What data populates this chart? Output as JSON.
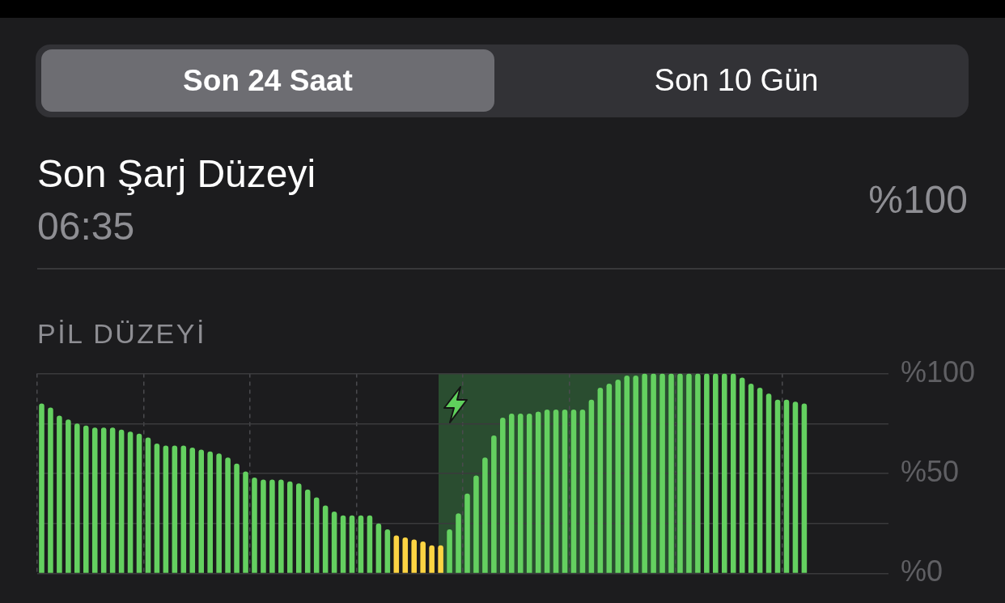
{
  "chart_data": {
    "type": "bar",
    "title": "PİL DÜZEYİ",
    "annotations": [
      "Son 24 Saat",
      "Son 10 Gün",
      "Son Şarj Düzeyi",
      "06:35",
      "%100"
    ],
    "categories": [
      null,
      null,
      null,
      null,
      null,
      null,
      null,
      null,
      null,
      null,
      null,
      null,
      null,
      null,
      null,
      null,
      null,
      null,
      null,
      null,
      null,
      null,
      null,
      null,
      null,
      null,
      null,
      null,
      null,
      null,
      null,
      null,
      null,
      null,
      null,
      null,
      null,
      null,
      null,
      null,
      null,
      null,
      null,
      null,
      null,
      null,
      null,
      null,
      null,
      null,
      null,
      null,
      null,
      null,
      null,
      null,
      null,
      null,
      null,
      null,
      null,
      null,
      null,
      null,
      null,
      null,
      null,
      null,
      null,
      null,
      null,
      null,
      null,
      null,
      null,
      null,
      null,
      null,
      null,
      null,
      null,
      null,
      null,
      null,
      null,
      null,
      null,
      null,
      null,
      null,
      null,
      null,
      null,
      null,
      null,
      null
    ],
    "values": [
      85,
      83,
      79,
      77,
      75,
      74,
      73,
      73,
      73,
      72,
      71,
      70,
      68,
      65,
      64,
      64,
      64,
      63,
      62,
      61,
      60,
      58,
      55,
      51,
      48,
      47,
      47,
      47,
      46,
      45,
      42,
      38,
      34,
      31,
      29,
      29,
      29,
      29,
      25,
      22,
      19,
      18,
      17,
      16,
      14,
      14,
      22,
      30,
      40,
      49,
      58,
      69,
      78,
      80,
      80,
      80,
      81,
      82,
      82,
      82,
      82,
      82,
      87,
      93,
      95,
      97,
      99,
      99,
      100,
      100,
      100,
      100,
      100,
      100,
      100,
      100,
      100,
      100,
      100,
      98,
      95,
      93,
      90,
      87,
      87,
      86,
      85,
      null,
      null,
      null,
      null,
      null,
      null,
      null,
      null,
      null
    ],
    "colors": [
      "#64d060",
      "#64d060",
      "#64d060",
      "#64d060",
      "#64d060",
      "#64d060",
      "#64d060",
      "#64d060",
      "#64d060",
      "#64d060",
      "#64d060",
      "#64d060",
      "#64d060",
      "#64d060",
      "#64d060",
      "#64d060",
      "#64d060",
      "#64d060",
      "#64d060",
      "#64d060",
      "#64d060",
      "#64d060",
      "#64d060",
      "#64d060",
      "#64d060",
      "#64d060",
      "#64d060",
      "#64d060",
      "#64d060",
      "#64d060",
      "#64d060",
      "#64d060",
      "#64d060",
      "#64d060",
      "#64d060",
      "#64d060",
      "#64d060",
      "#64d060",
      "#64d060",
      "#64d060",
      "#fdd443",
      "#fdd443",
      "#fdd443",
      "#fdd443",
      "#fdd443",
      "#fdd443",
      "#64d060",
      "#64d060",
      "#64d060",
      "#64d060",
      "#64d060",
      "#64d060",
      "#64d060",
      "#64d060",
      "#64d060",
      "#64d060",
      "#64d060",
      "#64d060",
      "#64d060",
      "#64d060",
      "#64d060",
      "#64d060",
      "#64d060",
      "#64d060",
      "#64d060",
      "#64d060",
      "#64d060",
      "#64d060",
      "#64d060",
      "#64d060",
      "#64d060",
      "#64d060",
      "#64d060",
      "#64d060",
      "#64d060",
      "#64d060",
      "#64d060",
      "#64d060",
      "#64d060",
      "#64d060",
      "#64d060",
      "#64d060",
      "#64d060",
      "#64d060",
      "#64d060",
      "#64d060",
      "#64d060",
      "#64d060",
      "#64d060",
      "#64d060",
      "#64d060",
      "#64d060",
      "#64d060",
      "#64d060",
      "#64d060",
      "#64d060"
    ],
    "ylim": [
      0,
      100
    ],
    "yticks": [
      {
        "value": 0,
        "label": "%0"
      },
      {
        "value": 25,
        "label": null
      },
      {
        "value": 50,
        "label": "%50"
      },
      {
        "value": 75,
        "label": null
      },
      {
        "value": 100,
        "label": "%100"
      }
    ],
    "grid": true,
    "tick_labels": "y"
  }
}
